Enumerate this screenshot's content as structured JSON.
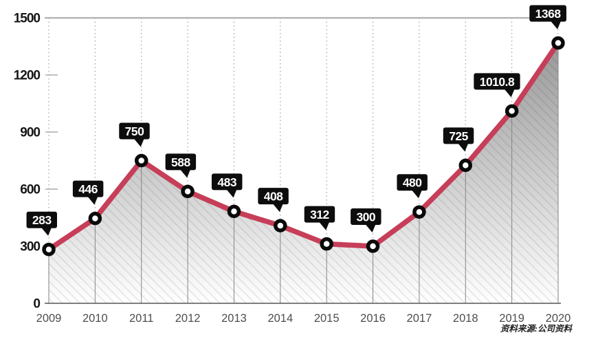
{
  "source_note": "资料来源:公司资料",
  "chart_data": {
    "type": "line",
    "title": "",
    "xlabel": "",
    "ylabel": "",
    "categories": [
      2009,
      2010,
      2011,
      2012,
      2013,
      2014,
      2015,
      2016,
      2017,
      2018,
      2019,
      2020
    ],
    "values": [
      283,
      446,
      750,
      588,
      483,
      408,
      312,
      300,
      480,
      725,
      1010.8,
      1368
    ],
    "point_labels": [
      "283",
      "446",
      "750",
      "588",
      "483",
      "408",
      "312",
      "300",
      "480",
      "725",
      "1010.8",
      "1368"
    ],
    "ylim": [
      0,
      1500
    ],
    "yticks": [
      0,
      300,
      600,
      900,
      1200,
      1500
    ],
    "grid": "vertical-dotted-per-year",
    "legend_position": "none",
    "style": {
      "line_color": "#c63e58",
      "line_width": 7.5,
      "marker": "open-circle-black-ring",
      "marker_fill": "#ffffff",
      "marker_stroke": "#0a0a0a",
      "label_bg": "#0d0d0d",
      "label_text_color": "#ffffff",
      "area_fill": "gray-gradient-diagonal-hatch",
      "area_top_color": "#8e8e8e",
      "area_bottom_color": "#ffffff",
      "grid_color": "#9e9e9e",
      "top_border_color": "#b0b0b0",
      "drop_line_color": "#858585",
      "baseline_color": "#555555",
      "axis_text_color": "#4d4d4d",
      "ytick_text_color": "#161616"
    }
  }
}
